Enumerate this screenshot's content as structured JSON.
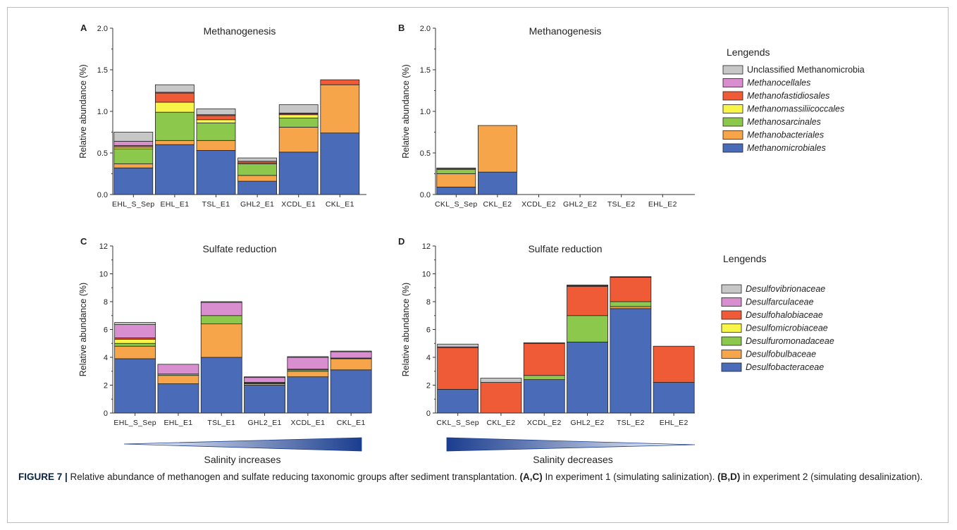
{
  "chart_data": [
    {
      "panel": "A",
      "type": "bar",
      "stacked": true,
      "title": "Methanogenesis",
      "ylabel": "Relative abundance (%)",
      "ylim": [
        0,
        2.0
      ],
      "yticks": [
        "0.0",
        "0.5",
        "1.0",
        "1.5",
        "2.0"
      ],
      "categories": [
        "EHL_S_Sep",
        "EHL_E1",
        "TSL_E1",
        "GHL2_E1",
        "XCDL_E1",
        "CKL_E1"
      ],
      "series": [
        {
          "name": "Methanomicrobiales",
          "values": [
            0.32,
            0.6,
            0.53,
            0.16,
            0.51,
            0.74
          ]
        },
        {
          "name": "Methanobacteriales",
          "values": [
            0.05,
            0.05,
            0.12,
            0.07,
            0.3,
            0.58
          ]
        },
        {
          "name": "Methanosarcinales",
          "values": [
            0.18,
            0.34,
            0.21,
            0.14,
            0.11,
            0
          ]
        },
        {
          "name": "Methanomassiliicoccales",
          "values": [
            0.02,
            0.12,
            0.04,
            0.01,
            0.04,
            0
          ]
        },
        {
          "name": "Methanofastidiosales",
          "values": [
            0.02,
            0.11,
            0.05,
            0.02,
            0.01,
            0.06
          ]
        },
        {
          "name": "Methanocellales",
          "values": [
            0.05,
            0.01,
            0.01,
            0,
            0.01,
            0
          ]
        },
        {
          "name": "Unclassified Methanomicrobia",
          "values": [
            0.11,
            0.09,
            0.07,
            0.04,
            0.1,
            0
          ]
        }
      ]
    },
    {
      "panel": "B",
      "type": "bar",
      "stacked": true,
      "title": "Methanogenesis",
      "ylabel": "Relative abundance (%)",
      "ylim": [
        0,
        2.0
      ],
      "yticks": [
        "0.0",
        "0.5",
        "1.0",
        "1.5",
        "2.0"
      ],
      "categories": [
        "CKL_S_Sep",
        "CKL_E2",
        "XCDL_E2",
        "GHL2_E2",
        "TSL_E2",
        "EHL_E2"
      ],
      "series": [
        {
          "name": "Methanomicrobiales",
          "values": [
            0.09,
            0.27,
            0,
            0,
            0,
            0
          ]
        },
        {
          "name": "Methanobacteriales",
          "values": [
            0.16,
            0.56,
            0,
            0,
            0,
            0
          ]
        },
        {
          "name": "Methanosarcinales",
          "values": [
            0.05,
            0,
            0,
            0,
            0,
            0
          ]
        },
        {
          "name": "Methanomassiliicoccales",
          "values": [
            0.01,
            0,
            0,
            0,
            0,
            0
          ]
        },
        {
          "name": "Methanofastidiosales",
          "values": [
            0,
            0,
            0,
            0,
            0,
            0
          ]
        },
        {
          "name": "Methanocellales",
          "values": [
            0,
            0,
            0,
            0,
            0,
            0
          ]
        },
        {
          "name": "Unclassified Methanomicrobia",
          "values": [
            0.01,
            0,
            0,
            0,
            0,
            0
          ]
        }
      ]
    },
    {
      "panel": "C",
      "type": "bar",
      "stacked": true,
      "title": "Sulfate reduction",
      "ylabel": "Relative abundance (%)",
      "ylim": [
        0,
        12
      ],
      "yticks": [
        "0",
        "2",
        "4",
        "6",
        "8",
        "10",
        "12"
      ],
      "categories": [
        "EHL_S_Sep",
        "EHL_E1",
        "TSL_E1",
        "GHL2_E1",
        "XCDL_E1",
        "CKL_E1"
      ],
      "series": [
        {
          "name": "Desulfobacteraceae",
          "values": [
            3.9,
            2.1,
            4.0,
            2.0,
            2.6,
            3.1
          ]
        },
        {
          "name": "Desulfobulbaceae",
          "values": [
            0.9,
            0.6,
            2.4,
            0.1,
            0.4,
            0.8
          ]
        },
        {
          "name": "Desulfuromonadaceae",
          "values": [
            0.2,
            0.1,
            0.6,
            0.05,
            0.1,
            0
          ]
        },
        {
          "name": "Desulfomicrobiaceae",
          "values": [
            0.3,
            0,
            0,
            0,
            0.05,
            0.02
          ]
        },
        {
          "name": "Desulfohalobiaceae",
          "values": [
            0.1,
            0,
            0,
            0.05,
            0,
            0.03
          ]
        },
        {
          "name": "Desulfarculaceae",
          "values": [
            0.95,
            0.7,
            0.95,
            0.35,
            0.85,
            0.45
          ]
        },
        {
          "name": "Desulfovibrionaceae",
          "values": [
            0.15,
            0,
            0.05,
            0.05,
            0.05,
            0.05
          ]
        }
      ]
    },
    {
      "panel": "D",
      "type": "bar",
      "stacked": true,
      "title": "Sulfate reduction",
      "ylabel": "Relative abundance (%)",
      "ylim": [
        0,
        12
      ],
      "yticks": [
        "0",
        "2",
        "4",
        "6",
        "8",
        "10",
        "12"
      ],
      "categories": [
        "CKL_S_Sep",
        "CKL_E2",
        "XCDL_E2",
        "GHL2_E2",
        "TSL_E2",
        "EHL_E2"
      ],
      "series": [
        {
          "name": "Desulfobacteraceae",
          "values": [
            1.7,
            0,
            2.4,
            5.1,
            7.5,
            2.2
          ]
        },
        {
          "name": "Desulfobulbaceae",
          "values": [
            0,
            0,
            0,
            0,
            0.15,
            0
          ]
        },
        {
          "name": "Desulfuromonadaceae",
          "values": [
            0,
            0,
            0.3,
            1.9,
            0.35,
            0
          ]
        },
        {
          "name": "Desulfomicrobiaceae",
          "values": [
            0,
            0,
            0,
            0,
            0,
            0
          ]
        },
        {
          "name": "Desulfohalobiaceae",
          "values": [
            3.0,
            2.2,
            2.3,
            2.1,
            1.75,
            2.6
          ]
        },
        {
          "name": "Desulfarculaceae",
          "values": [
            0.05,
            0,
            0,
            0.05,
            0,
            0
          ]
        },
        {
          "name": "Desulfovibrionaceae",
          "values": [
            0.2,
            0.3,
            0.05,
            0.05,
            0.05,
            0
          ]
        }
      ]
    }
  ],
  "legends": {
    "methanogen": {
      "title": "Lengends",
      "items": [
        {
          "name": "Unclassified Methanomicrobia",
          "italic": false
        },
        {
          "name": "Methanocellales",
          "italic": true
        },
        {
          "name": "Methanofastidiosales",
          "italic": true
        },
        {
          "name": "Methanomassiliicoccales",
          "italic": true
        },
        {
          "name": "Methanosarcinales",
          "italic": true
        },
        {
          "name": "Methanobacteriales",
          "italic": true
        },
        {
          "name": "Methanomicrobiales",
          "italic": true
        }
      ]
    },
    "sulfate": {
      "title": "Lengends",
      "items": [
        {
          "name": "Desulfovibrionaceae",
          "italic": true
        },
        {
          "name": "Desulfarculaceae",
          "italic": true
        },
        {
          "name": "Desulfohalobiaceae",
          "italic": true
        },
        {
          "name": "Desulfomicrobiaceae",
          "italic": true
        },
        {
          "name": "Desulfuromonadaceae",
          "italic": true
        },
        {
          "name": "Desulfobulbaceae",
          "italic": true
        },
        {
          "name": "Desulfobacteraceae",
          "italic": true
        }
      ]
    }
  },
  "colors": {
    "Methanomicrobiales": "#4a6cb8",
    "Methanobacteriales": "#f6a54a",
    "Methanosarcinales": "#8cc84b",
    "Methanomassiliicoccales": "#f7f547",
    "Methanofastidiosales": "#ef5a37",
    "Methanocellales": "#d98fcf",
    "Unclassified Methanomicrobia": "#c7c7c7",
    "Desulfobacteraceae": "#4a6cb8",
    "Desulfobulbaceae": "#f6a54a",
    "Desulfuromonadaceae": "#8cc84b",
    "Desulfomicrobiaceae": "#f7f547",
    "Desulfohalobiaceae": "#ef5a37",
    "Desulfarculaceae": "#d98fcf",
    "Desulfovibrionaceae": "#c7c7c7",
    "salinity_gradient": "#1a3d8f"
  },
  "salinity": {
    "left_label": "Salinity increases",
    "right_label": "Salinity decreases"
  },
  "caption": {
    "label": "FIGURE 7 |",
    "text1": " Relative abundance of methanogen and sulfate reducing taxonomic groups after sediment transplantation. ",
    "ref1": "(A,C)",
    "text2": " In experiment 1 (simulating salinization). ",
    "ref2": "(B,D)",
    "text3": " in experiment 2 (simulating desalinization)."
  }
}
